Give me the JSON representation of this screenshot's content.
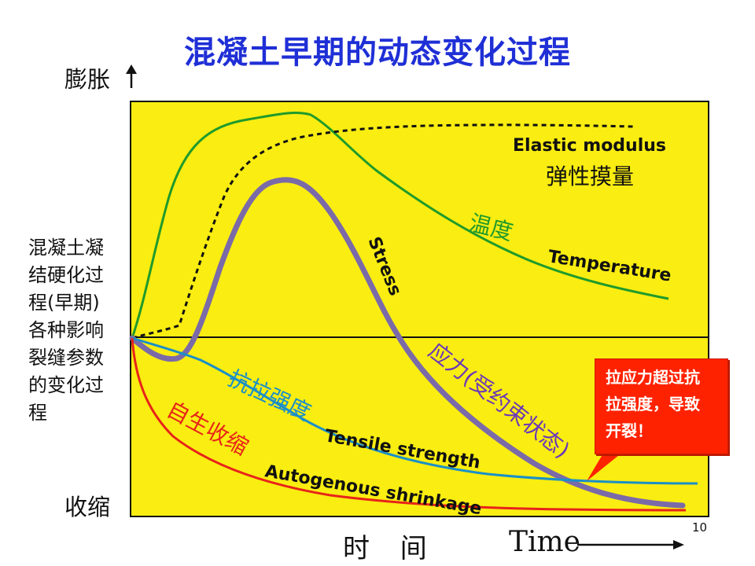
{
  "title": "混凝土早期的动态变化过程",
  "y_top_label": "膨胀",
  "y_bottom_label": "收缩",
  "side_text": [
    "混凝土凝",
    "结硬化过",
    "程(早期)",
    "各种影响",
    "裂缝参数",
    "的变化过",
    "程"
  ],
  "x_label_cn": "时 间",
  "x_label_en": "Time",
  "page_number": "10",
  "callout": [
    "拉应力超过抗",
    "拉强度，导致",
    "开裂！"
  ],
  "colors": {
    "background": "#f9ed11",
    "title": "#1f2fd6",
    "temperature": "#1f9a2b",
    "elastic_modulus": "#111111",
    "stress": "#7b6aa8",
    "tensile_strength": "#1a8fc8",
    "autogenous_shrinkage": "#e8231a",
    "callout_bg": "#ff2200"
  },
  "curves": {
    "elastic_modulus": {
      "en": "Elastic modulus",
      "cn": "弹性摸量"
    },
    "temperature": {
      "en": "Temperature",
      "cn": "温度"
    },
    "stress": {
      "en": "Stress",
      "cn": "应力(受约束状态)"
    },
    "tensile_strength": {
      "en": "Tensile strength",
      "cn": "抗拉强度"
    },
    "autogenous_shrinkage": {
      "en": "Autogenous shrinkage",
      "cn": "自生收缩"
    }
  }
}
